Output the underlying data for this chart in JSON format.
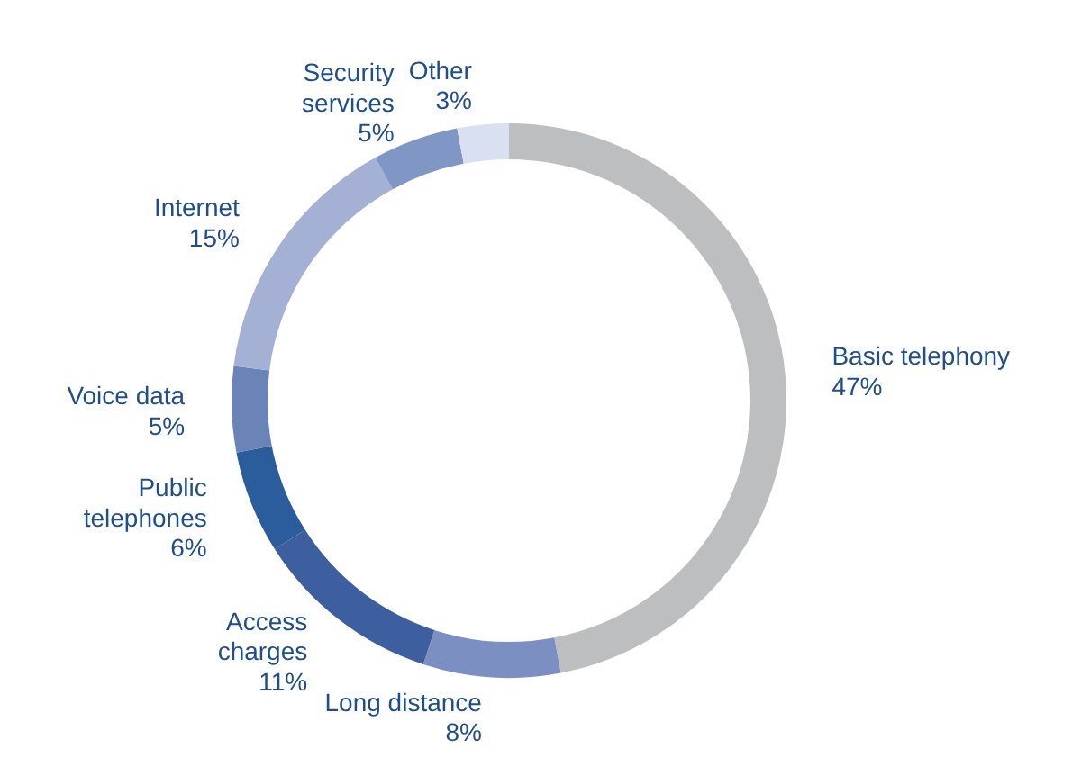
{
  "chart_data": {
    "type": "donut",
    "categories": [
      "Basic telephony",
      "Long distance",
      "Access\ncharges",
      "Public\ntelephones",
      "Voice data",
      "Internet",
      "Security\nservices",
      "Other"
    ],
    "values": [
      47,
      8,
      11,
      6,
      5,
      15,
      5,
      3
    ],
    "colors": [
      "#bcbec0",
      "#7b8fc2",
      "#3e5f9f",
      "#2b5c9b",
      "#6b84b7",
      "#a4b1d4",
      "#8096c5",
      "#d8e0f1"
    ],
    "value_labels": [
      "47%",
      "8%",
      "11%",
      "6%",
      "5%",
      "15%",
      "5%",
      "3%"
    ]
  }
}
